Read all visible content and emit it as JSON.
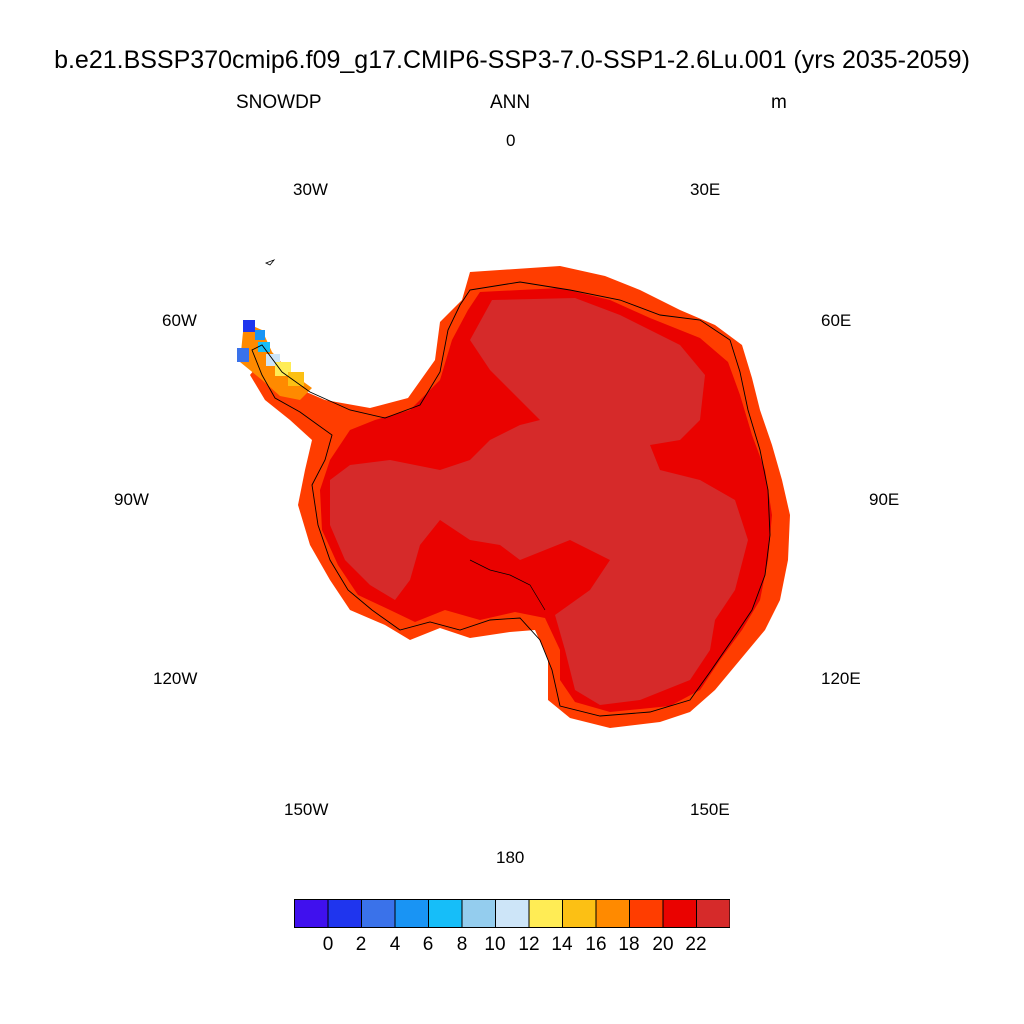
{
  "header": {
    "title": "b.e21.BSSP370cmip6.f09_g17.CMIP6-SSP3-7.0-SSP1-2.6Lu.001 (yrs 2035-2059)",
    "variable": "SNOWDP",
    "season": "ANN",
    "units": "m"
  },
  "longitude_labels": {
    "lon_0": "0",
    "lon_30e": "30E",
    "lon_60e": "60E",
    "lon_90e": "90E",
    "lon_120e": "120E",
    "lon_150e": "150E",
    "lon_180": "180",
    "lon_150w": "150W",
    "lon_120w": "120W",
    "lon_90w": "90W",
    "lon_60w": "60W",
    "lon_30w": "30W"
  },
  "map": {
    "projection": "south polar stereographic",
    "region": "Antarctica"
  },
  "colorbar": {
    "colors": [
      "#4010ee",
      "#1f35ee",
      "#3a72ea",
      "#1994f4",
      "#16bef9",
      "#94cdee",
      "#cde5f8",
      "#ffec55",
      "#fcc014",
      "#ff8a00",
      "#ff3d00",
      "#ea0200",
      "#d62a2a"
    ],
    "labels": [
      "0",
      "2",
      "4",
      "6",
      "8",
      "10",
      "12",
      "14",
      "16",
      "18",
      "20",
      "22"
    ]
  }
}
